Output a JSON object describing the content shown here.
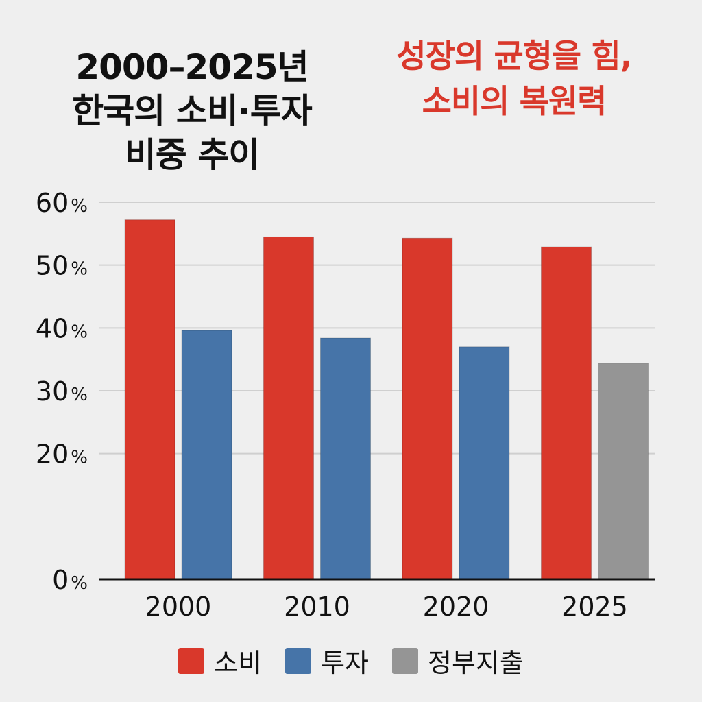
{
  "chart_data": {
    "type": "bar",
    "title_lines": [
      "2000–2025년",
      "한국의 소비·투자",
      "비중 추이"
    ],
    "subtitle_lines": [
      "성장의 균형을 힘,",
      "소비의 복원력"
    ],
    "categories": [
      "2000",
      "2010",
      "2020",
      "2025"
    ],
    "series": [
      {
        "name": "소비",
        "color": "#d9382b",
        "values": [
          57.2,
          54.5,
          54.3,
          52.9
        ]
      },
      {
        "name": "투자",
        "color": "#4674a8",
        "values": [
          39.6,
          38.4,
          37.0,
          null
        ]
      },
      {
        "name": "정부지출",
        "color": "#959595",
        "values": [
          null,
          null,
          null,
          34.4
        ]
      }
    ],
    "y_ticks": [
      {
        "value": 0,
        "number": "0",
        "unit": "%"
      },
      {
        "value": 20,
        "number": "20",
        "unit": "%"
      },
      {
        "value": 30,
        "number": "30",
        "unit": "%"
      },
      {
        "value": 40,
        "number": "40",
        "unit": "%"
      },
      {
        "value": 50,
        "number": "50",
        "unit": "%"
      },
      {
        "value": 60,
        "number": "60",
        "unit": "%"
      }
    ],
    "ylim": [
      0,
      60
    ],
    "grid": true,
    "legend_position": "bottom-center",
    "xlabel": "",
    "ylabel": ""
  },
  "colors": {
    "background": "#efefef",
    "title": "#111111",
    "subtitle": "#d9382b",
    "grid": "#cfcfcf",
    "axis": "#111111"
  }
}
